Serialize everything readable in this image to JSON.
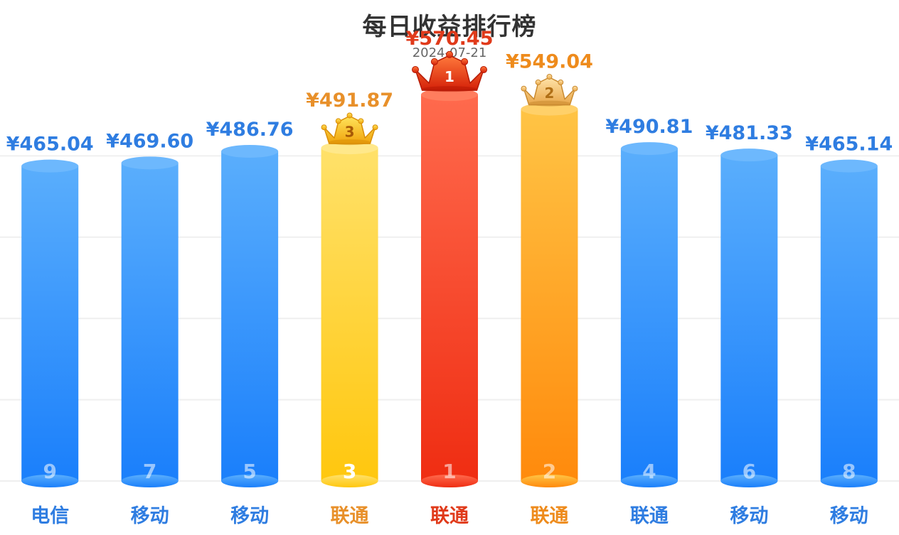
{
  "chart_data": {
    "type": "bar",
    "title": "每日收益排行榜",
    "subtitle": "2024-07-21",
    "currency": "¥",
    "categories": [
      "电信",
      "移动",
      "移动",
      "联通",
      "联通",
      "联通",
      "联通",
      "移动",
      "移动"
    ],
    "values": [
      465.04,
      469.6,
      486.76,
      491.87,
      570.45,
      549.04,
      490.81,
      481.33,
      465.14
    ],
    "value_labels": [
      "¥465.04",
      "¥469.60",
      "¥486.76",
      "¥491.87",
      "¥570.45",
      "¥549.04",
      "¥490.81",
      "¥481.33",
      "¥465.14"
    ],
    "ranks": [
      "9",
      "7",
      "5",
      "3",
      "1",
      "2",
      "4",
      "6",
      "8"
    ],
    "ylim": [
      0,
      600
    ],
    "grid": true,
    "colors": {
      "default_top": "#5aaefc",
      "default_bottom": "#1a7ffb",
      "default_text": "#2f7de1",
      "rank1_top": "#ff6a4d",
      "rank1_bottom": "#ef2d12",
      "rank1_text": "#e03a1a",
      "rank2_top": "#ffc445",
      "rank2_bottom": "#ff8a0c",
      "rank2_text": "#ee8b1c",
      "rank3_top": "#ffe16a",
      "rank3_bottom": "#ffc70e",
      "rank3_text": "#e8902a"
    },
    "crowns": [
      "crown-rank-1-icon",
      "crown-rank-2-icon",
      "crown-rank-3-icon"
    ]
  }
}
